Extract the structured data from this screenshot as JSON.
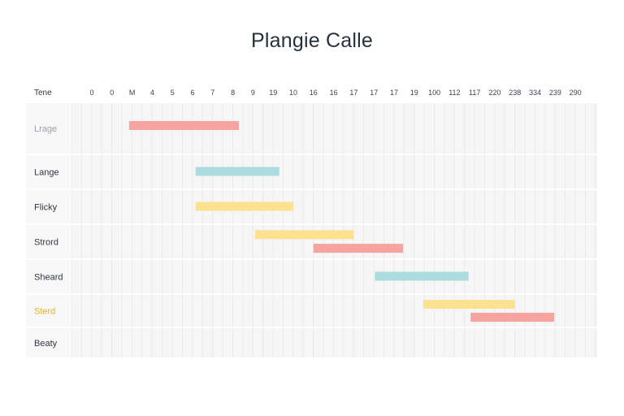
{
  "chart_data": {
    "type": "gantt",
    "title": "Plangie Calle",
    "header_label": "Tene",
    "columns": [
      "0",
      "0",
      "M",
      "4",
      "5",
      "6",
      "7",
      "8",
      "9",
      "19",
      "10",
      "16",
      "16",
      "17",
      "17",
      "17",
      "19",
      "100",
      "112",
      "117",
      "220",
      "238",
      "334",
      "239",
      "290"
    ],
    "rows": [
      {
        "label": "Lrage",
        "style": "muted"
      },
      {
        "label": "Lange",
        "style": "normal"
      },
      {
        "label": "Flicky",
        "style": "normal"
      },
      {
        "label": "Strord",
        "style": "normal"
      },
      {
        "label": "Sheard",
        "style": "normal"
      },
      {
        "label": "Sterd",
        "style": "highlight"
      },
      {
        "label": "Beaty",
        "style": "normal"
      }
    ],
    "tasks": [
      {
        "row": 0,
        "start": 1.85,
        "end": 7.3,
        "sub": 0,
        "color": "#f7a3a0"
      },
      {
        "row": 1,
        "start": 5.15,
        "end": 9.3,
        "sub": 0,
        "color": "#abdcdf"
      },
      {
        "row": 2,
        "start": 5.15,
        "end": 10.0,
        "sub": 0,
        "color": "#fce191"
      },
      {
        "row": 3,
        "start": 8.1,
        "end": 13.0,
        "sub": 0,
        "color": "#fce191"
      },
      {
        "row": 3,
        "start": 11.0,
        "end": 15.45,
        "sub": 1,
        "color": "#f7a3a0"
      },
      {
        "row": 4,
        "start": 14.05,
        "end": 18.7,
        "sub": 0,
        "color": "#abdcdf"
      },
      {
        "row": 5,
        "start": 16.45,
        "end": 21.0,
        "sub": 0,
        "color": "#fce191"
      },
      {
        "row": 5,
        "start": 18.8,
        "end": 22.95,
        "sub": 1,
        "color": "#f7a3a0"
      }
    ]
  }
}
